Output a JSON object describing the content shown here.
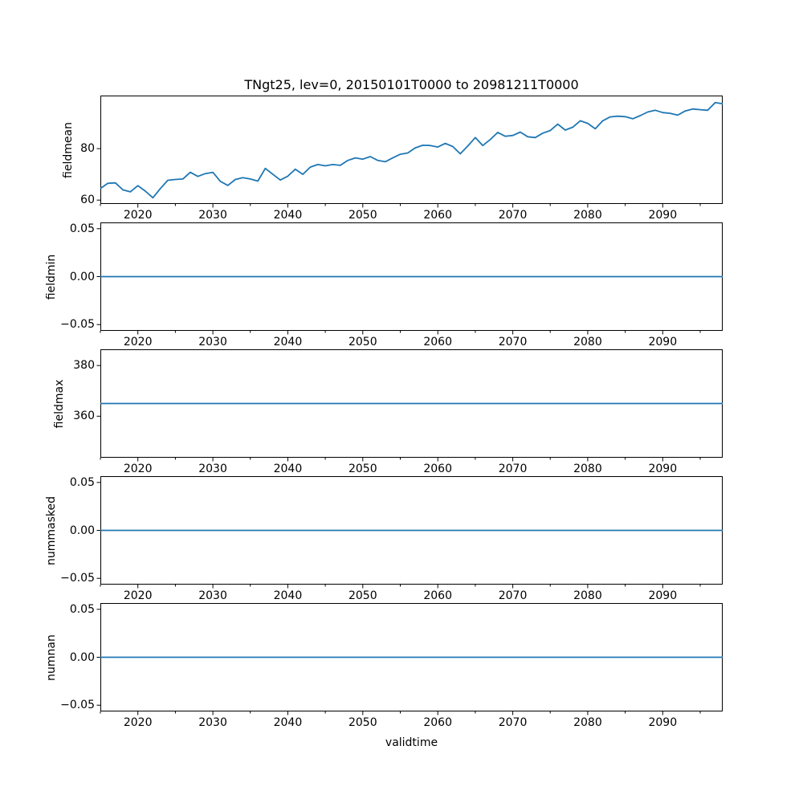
{
  "chart_data": {
    "type": "line",
    "title": "TNgt25, lev=0, 20150101T0000 to 20981211T0000",
    "xlabel": "validtime",
    "line_color": "#1f77b4",
    "spine_color": "#000000",
    "background_color": "#ffffff",
    "legend": "none",
    "grid": false,
    "xlim": [
      2015,
      2098
    ],
    "x_major_ticks": [
      2020,
      2030,
      2040,
      2050,
      2060,
      2070,
      2080,
      2090
    ],
    "x_major_tick_labels": [
      "2020",
      "2030",
      "2040",
      "2050",
      "2060",
      "2070",
      "2080",
      "2090"
    ],
    "x_minor_ticks": [
      2015,
      2025,
      2035,
      2045,
      2055,
      2065,
      2075,
      2085,
      2095
    ],
    "x": [
      2015,
      2016,
      2017,
      2018,
      2019,
      2020,
      2021,
      2022,
      2023,
      2024,
      2025,
      2026,
      2027,
      2028,
      2029,
      2030,
      2031,
      2032,
      2033,
      2034,
      2035,
      2036,
      2037,
      2038,
      2039,
      2040,
      2041,
      2042,
      2043,
      2044,
      2045,
      2046,
      2047,
      2048,
      2049,
      2050,
      2051,
      2052,
      2053,
      2054,
      2055,
      2056,
      2057,
      2058,
      2059,
      2060,
      2061,
      2062,
      2063,
      2064,
      2065,
      2066,
      2067,
      2068,
      2069,
      2070,
      2071,
      2072,
      2073,
      2074,
      2075,
      2076,
      2077,
      2078,
      2079,
      2080,
      2081,
      2082,
      2083,
      2084,
      2085,
      2086,
      2087,
      2088,
      2089,
      2090,
      2091,
      2092,
      2093,
      2094,
      2095,
      2096,
      2097,
      2098
    ],
    "subplots": [
      {
        "name": "fieldmean",
        "ylabel": "fieldmean",
        "yticks": [
          80,
          60
        ],
        "ytick_labels": [
          "80",
          "60"
        ],
        "ylim": [
          58.5,
          100.6
        ],
        "values": [
          64.5,
          66.5,
          66.7,
          64.0,
          63.2,
          65.6,
          63.5,
          60.9,
          64.5,
          67.7,
          68.0,
          68.2,
          70.8,
          69.2,
          70.3,
          70.8,
          67.3,
          65.7,
          68.0,
          68.7,
          68.2,
          67.4,
          72.3,
          70.0,
          67.8,
          69.3,
          72.0,
          70.0,
          72.8,
          73.8,
          73.3,
          73.8,
          73.5,
          75.4,
          76.4,
          75.9,
          76.9,
          75.4,
          74.9,
          76.4,
          77.8,
          78.3,
          80.3,
          81.3,
          81.2,
          80.6,
          82.0,
          80.8,
          78.0,
          81.0,
          84.3,
          81.2,
          83.5,
          86.3,
          84.8,
          85.1,
          86.4,
          84.6,
          84.3,
          86.0,
          87.0,
          89.5,
          87.2,
          88.3,
          90.8,
          89.8,
          87.7,
          90.8,
          92.3,
          92.6,
          92.4,
          91.6,
          92.8,
          94.2,
          94.9,
          94.0,
          93.7,
          93.0,
          94.6,
          95.4,
          95.1,
          94.9,
          97.9,
          97.4
        ]
      },
      {
        "name": "fieldmin",
        "ylabel": "fieldmin",
        "yticks": [
          0.05,
          0.0,
          -0.05
        ],
        "ytick_labels": [
          "0.05",
          "0.00",
          "−0.05"
        ],
        "ylim": [
          -0.0565,
          0.0565
        ],
        "constant_value": 0.0
      },
      {
        "name": "fieldmax",
        "ylabel": "fieldmax",
        "yticks": [
          380,
          360
        ],
        "ytick_labels": [
          "380",
          "360"
        ],
        "ylim": [
          343.6,
          386.4
        ],
        "constant_value": 365.0
      },
      {
        "name": "nummasked",
        "ylabel": "nummasked",
        "yticks": [
          0.05,
          0.0,
          -0.05
        ],
        "ytick_labels": [
          "0.05",
          "0.00",
          "−0.05"
        ],
        "ylim": [
          -0.0565,
          0.0565
        ],
        "constant_value": 0.0
      },
      {
        "name": "numnan",
        "ylabel": "numnan",
        "yticks": [
          0.05,
          0.0,
          -0.05
        ],
        "ytick_labels": [
          "0.05",
          "0.00",
          "−0.05"
        ],
        "ylim": [
          -0.0565,
          0.0565
        ],
        "constant_value": 0.0
      }
    ]
  }
}
